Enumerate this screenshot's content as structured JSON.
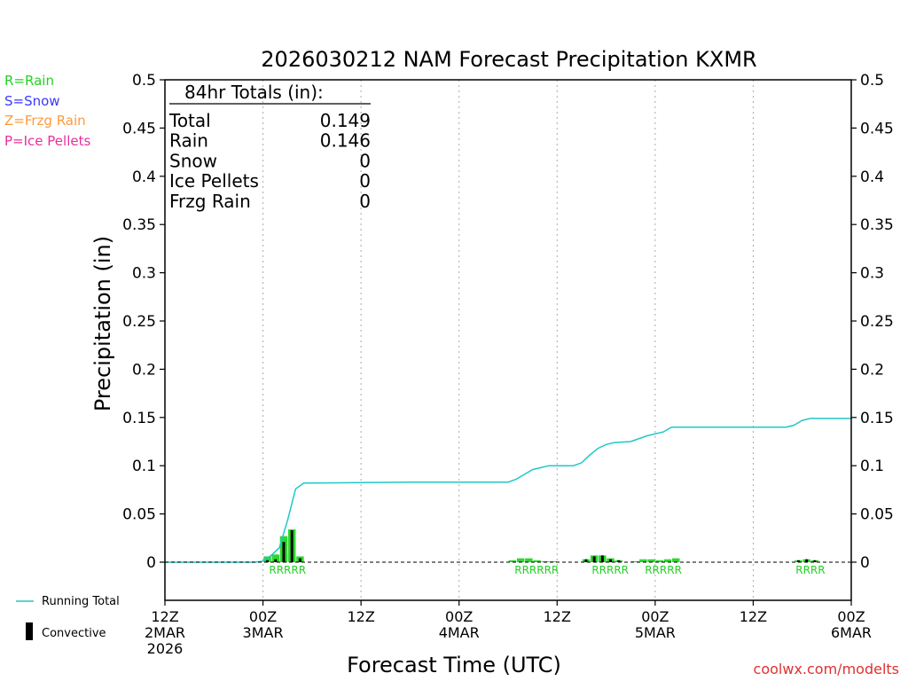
{
  "chart_data": {
    "type": "bar",
    "title": "2026030212 NAM Forecast Precipitation KXMR",
    "ylabel": "Precipitation (in)",
    "xlabel": "Forecast Time (UTC)",
    "ylim": [
      -0.04,
      0.5
    ],
    "yticks": [
      "0",
      "0.05",
      "0.1",
      "0.15",
      "0.2",
      "0.25",
      "0.3",
      "0.35",
      "0.4",
      "0.45",
      "0.5"
    ],
    "ytick_values": [
      0,
      0.05,
      0.1,
      0.15,
      0.2,
      0.25,
      0.3,
      0.35,
      0.4,
      0.45,
      0.5
    ],
    "xlim_hours": [
      0,
      84
    ],
    "xticks": [
      {
        "hour": 0,
        "l1": "12Z",
        "l2": "2MAR",
        "l3": "2026"
      },
      {
        "hour": 12,
        "l1": "00Z",
        "l2": "3MAR",
        "l3": ""
      },
      {
        "hour": 24,
        "l1": "12Z",
        "l2": "",
        "l3": ""
      },
      {
        "hour": 36,
        "l1": "00Z",
        "l2": "4MAR",
        "l3": ""
      },
      {
        "hour": 48,
        "l1": "12Z",
        "l2": "",
        "l3": ""
      },
      {
        "hour": 60,
        "l1": "00Z",
        "l2": "5MAR",
        "l3": ""
      },
      {
        "hour": 72,
        "l1": "12Z",
        "l2": "",
        "l3": ""
      },
      {
        "hour": 84,
        "l1": "00Z",
        "l2": "6MAR",
        "l3": ""
      }
    ],
    "bars": [
      {
        "hour": 13,
        "rain": 0.006,
        "conv": 0.002
      },
      {
        "hour": 14,
        "rain": 0.008,
        "conv": 0.003
      },
      {
        "hour": 15,
        "rain": 0.027,
        "conv": 0.021
      },
      {
        "hour": 16,
        "rain": 0.034,
        "conv": 0.033
      },
      {
        "hour": 17,
        "rain": 0.006,
        "conv": 0.004
      },
      {
        "hour": 43,
        "rain": 0.002,
        "conv": 0
      },
      {
        "hour": 44,
        "rain": 0.004,
        "conv": 0
      },
      {
        "hour": 45,
        "rain": 0.004,
        "conv": 0
      },
      {
        "hour": 46,
        "rain": 0.002,
        "conv": 0
      },
      {
        "hour": 47,
        "rain": 0.001,
        "conv": 0
      },
      {
        "hour": 48,
        "rain": 0.001,
        "conv": 0
      },
      {
        "hour": 52,
        "rain": 0.003,
        "conv": 0.003
      },
      {
        "hour": 53,
        "rain": 0.007,
        "conv": 0.006
      },
      {
        "hour": 54,
        "rain": 0.007,
        "conv": 0.007
      },
      {
        "hour": 55,
        "rain": 0.004,
        "conv": 0.003
      },
      {
        "hour": 56,
        "rain": 0.002,
        "conv": 0.002
      },
      {
        "hour": 58,
        "rain": 0.001,
        "conv": 0
      },
      {
        "hour": 59,
        "rain": 0.003,
        "conv": 0
      },
      {
        "hour": 60,
        "rain": 0.003,
        "conv": 0
      },
      {
        "hour": 61,
        "rain": 0.002,
        "conv": 0
      },
      {
        "hour": 62,
        "rain": 0.003,
        "conv": 0
      },
      {
        "hour": 63,
        "rain": 0.004,
        "conv": 0
      },
      {
        "hour": 78,
        "rain": 0.002,
        "conv": 0.002
      },
      {
        "hour": 79,
        "rain": 0.003,
        "conv": 0.003
      },
      {
        "hour": 80,
        "rain": 0.002,
        "conv": 0.002
      }
    ],
    "running_total": [
      [
        0,
        0
      ],
      [
        11,
        0
      ],
      [
        12,
        0.001
      ],
      [
        13,
        0.007
      ],
      [
        14,
        0.015
      ],
      [
        15,
        0.043
      ],
      [
        16,
        0.076
      ],
      [
        17,
        0.082
      ],
      [
        18,
        0.082
      ],
      [
        30,
        0.083
      ],
      [
        42,
        0.083
      ],
      [
        43,
        0.086
      ],
      [
        44,
        0.091
      ],
      [
        45,
        0.096
      ],
      [
        46,
        0.098
      ],
      [
        47,
        0.1
      ],
      [
        50,
        0.1
      ],
      [
        51,
        0.103
      ],
      [
        52,
        0.111
      ],
      [
        53,
        0.118
      ],
      [
        54,
        0.122
      ],
      [
        55,
        0.124
      ],
      [
        57,
        0.125
      ],
      [
        59,
        0.131
      ],
      [
        61,
        0.135
      ],
      [
        62,
        0.14
      ],
      [
        70,
        0.14
      ],
      [
        76,
        0.14
      ],
      [
        77,
        0.142
      ],
      [
        78,
        0.147
      ],
      [
        79,
        0.149
      ],
      [
        84,
        0.149
      ]
    ],
    "ptype_labels": [
      {
        "text": "RRRRR",
        "hour": 15
      },
      {
        "text": "RRRRRR",
        "hour": 45.5
      },
      {
        "text": "RRRRR",
        "hour": 54.5
      },
      {
        "text": "RRRRR",
        "hour": 61
      },
      {
        "text": "RRRR",
        "hour": 79
      }
    ],
    "colors": {
      "rain_bar": "#2cd82c",
      "convective_bar": "#000000",
      "running_total": "#1fc8c8",
      "rain_text": "#24d024",
      "snow_text": "#3a3aff",
      "frzg_text": "#ff9a3c",
      "ice_text": "#e8309c",
      "credit_text": "#e03030"
    }
  },
  "ptype_legend": {
    "rain": "R=Rain",
    "snow": "S=Snow",
    "frzg": "Z=Frzg Rain",
    "ice": "P=Ice Pellets"
  },
  "totals": {
    "header": "84hr Totals (in):",
    "rows": [
      {
        "label": "Total",
        "value": "0.149"
      },
      {
        "label": "Rain",
        "value": "0.146"
      },
      {
        "label": "Snow",
        "value": "0"
      },
      {
        "label": "Ice Pellets",
        "value": "0"
      },
      {
        "label": "Frzg Rain",
        "value": "0"
      }
    ]
  },
  "legend": {
    "running_total": "Running Total",
    "convective": "Convective"
  },
  "credit": "coolwx.com/modelts"
}
